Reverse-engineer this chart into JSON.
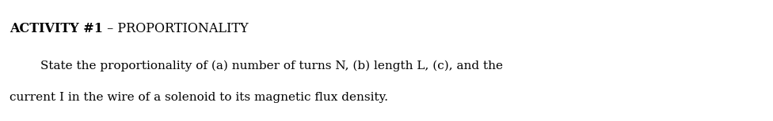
{
  "background_color": "#ffffff",
  "title_bold": "ACTIVITY #1",
  "title_separator": " – ",
  "title_normal": "PROPORTIONALITY",
  "body_line1": "        State the proportionality of (a) number of turns N, (b) length L, (c), and the",
  "body_line2": "current I in the wire of a solenoid to its magnetic flux density.",
  "title_fontsize": 11.5,
  "body_fontsize": 11.0,
  "font_family": "DejaVu Serif",
  "text_color": "#000000",
  "fig_width": 9.76,
  "fig_height": 1.54,
  "dpi": 100
}
